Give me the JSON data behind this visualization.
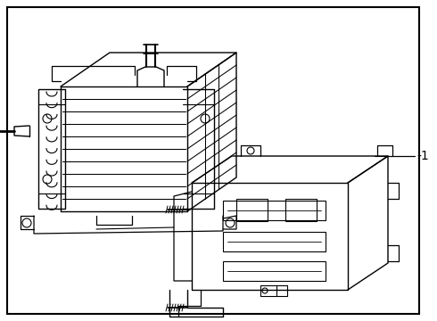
{
  "background_color": "#ffffff",
  "border_color": "#000000",
  "line_color": "#000000",
  "label_text": "-1",
  "fig_width": 4.9,
  "fig_height": 3.6,
  "dpi": 100,
  "border": [
    8,
    8,
    462,
    344
  ]
}
